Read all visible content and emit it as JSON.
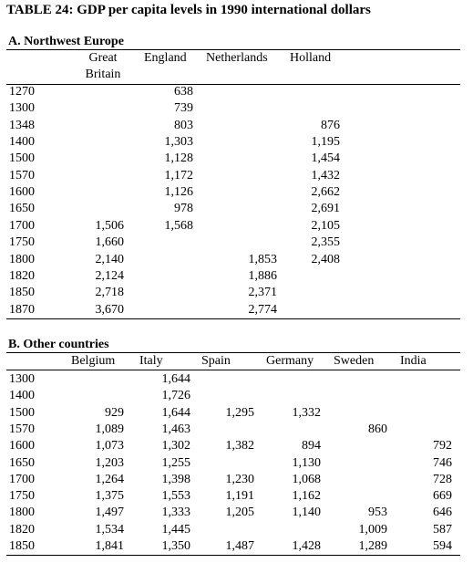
{
  "title": "TABLE 24: GDP per capita levels in 1990 international dollars",
  "sectionA": {
    "heading": "A. Northwest Europe",
    "columns": [
      "Great Britain",
      "England",
      "Netherlands",
      "Holland"
    ],
    "col_gb_line1": "Great",
    "col_gb_line2": "Britain",
    "rows": [
      {
        "year": "1270",
        "gb": "",
        "en": "638",
        "nl": "",
        "ho": ""
      },
      {
        "year": "1300",
        "gb": "",
        "en": "739",
        "nl": "",
        "ho": ""
      },
      {
        "year": "1348",
        "gb": "",
        "en": "803",
        "nl": "",
        "ho": "876"
      },
      {
        "year": "1400",
        "gb": "",
        "en": "1,303",
        "nl": "",
        "ho": "1,195"
      },
      {
        "year": "1500",
        "gb": "",
        "en": "1,128",
        "nl": "",
        "ho": "1,454"
      },
      {
        "year": "1570",
        "gb": "",
        "en": "1,172",
        "nl": "",
        "ho": "1,432"
      },
      {
        "year": "1600",
        "gb": "",
        "en": "1,126",
        "nl": "",
        "ho": "2,662"
      },
      {
        "year": "1650",
        "gb": "",
        "en": "978",
        "nl": "",
        "ho": "2,691"
      },
      {
        "year": "1700",
        "gb": "1,506",
        "en": "1,568",
        "nl": "",
        "ho": "2,105"
      },
      {
        "year": "1750",
        "gb": "1,660",
        "en": "",
        "nl": "",
        "ho": "2,355"
      },
      {
        "year": "1800",
        "gb": "2,140",
        "en": "",
        "nl": "1,853",
        "ho": "2,408"
      },
      {
        "year": "1820",
        "gb": "2,124",
        "en": "",
        "nl": "1,886",
        "ho": ""
      },
      {
        "year": "1850",
        "gb": "2,718",
        "en": "",
        "nl": "2,371",
        "ho": ""
      },
      {
        "year": "1870",
        "gb": "3,670",
        "en": "",
        "nl": "2,774",
        "ho": ""
      }
    ]
  },
  "sectionB": {
    "heading": "B. Other countries",
    "columns": [
      "Belgium",
      "Italy",
      "Spain",
      "Germany",
      "Sweden",
      "India"
    ],
    "rows": [
      {
        "year": "1300",
        "be": "",
        "it": "1,644",
        "es": "",
        "de": "",
        "se": "",
        "in": ""
      },
      {
        "year": "1400",
        "be": "",
        "it": "1,726",
        "es": "",
        "de": "",
        "se": "",
        "in": ""
      },
      {
        "year": "1500",
        "be": "929",
        "it": "1,644",
        "es": "1,295",
        "de": "1,332",
        "se": "",
        "in": ""
      },
      {
        "year": "1570",
        "be": "1,089",
        "it": "1,463",
        "es": "",
        "de": "",
        "se": "860",
        "in": ""
      },
      {
        "year": "1600",
        "be": "1,073",
        "it": "1,302",
        "es": "1,382",
        "de": "894",
        "se": "",
        "in": "792"
      },
      {
        "year": "1650",
        "be": "1,203",
        "it": "1,255",
        "es": "",
        "de": "1,130",
        "se": "",
        "in": "746"
      },
      {
        "year": "1700",
        "be": "1,264",
        "it": "1,398",
        "es": "1,230",
        "de": "1,068",
        "se": "",
        "in": "728"
      },
      {
        "year": "1750",
        "be": "1,375",
        "it": "1,553",
        "es": "1,191",
        "de": "1,162",
        "se": "",
        "in": "669"
      },
      {
        "year": "1800",
        "be": "1,497",
        "it": "1,333",
        "es": "1,205",
        "de": "1,140",
        "se": "953",
        "in": "646"
      },
      {
        "year": "1820",
        "be": "1,534",
        "it": "1,445",
        "es": "",
        "de": "",
        "se": "1,009",
        "in": "587"
      },
      {
        "year": "1850",
        "be": "1,841",
        "it": "1,350",
        "es": "1,487",
        "de": "1,428",
        "se": "1,289",
        "in": "594"
      }
    ]
  }
}
